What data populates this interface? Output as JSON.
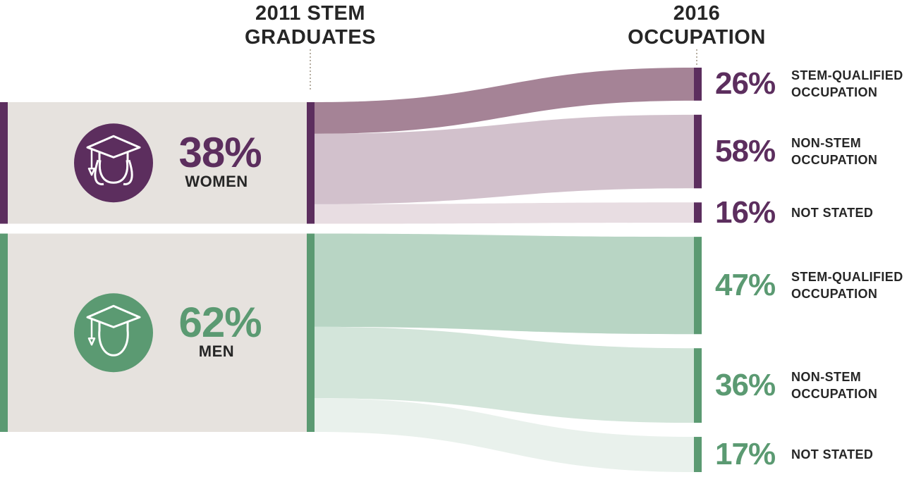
{
  "headers": {
    "left_line1": "2011 STEM",
    "left_line2": "GRADUATES",
    "right_line1": "2016",
    "right_line2": "OCCUPATION"
  },
  "colors": {
    "women_dark": "#5c2e5e",
    "women_flow_stem": "#a58396",
    "women_flow_nonstem": "#d2c1cc",
    "women_flow_notstated": "#e8dde2",
    "men_dark": "#5b9a72",
    "men_flow_stem": "#b8d5c4",
    "men_flow_nonstem": "#d3e5da",
    "men_flow_notstated": "#e9f1ec",
    "box_bg": "#e6e2de",
    "text": "#262626"
  },
  "chart_data": {
    "type": "sankey",
    "source_label": "2011 STEM GRADUATES",
    "target_label": "2016 OCCUPATION",
    "groups": [
      {
        "key": "women",
        "name": "WOMEN",
        "share": "38%",
        "share_value": 38,
        "icon": "female-graduate-icon",
        "outcomes": [
          {
            "pct": "26%",
            "value": 26,
            "label_line1": "STEM-QUALIFIED",
            "label_line2": "OCCUPATION"
          },
          {
            "pct": "58%",
            "value": 58,
            "label_line1": "NON-STEM",
            "label_line2": "OCCUPATION"
          },
          {
            "pct": "16%",
            "value": 16,
            "label_line1": "NOT STATED",
            "label_line2": ""
          }
        ]
      },
      {
        "key": "men",
        "name": "MEN",
        "share": "62%",
        "share_value": 62,
        "icon": "male-graduate-icon",
        "outcomes": [
          {
            "pct": "47%",
            "value": 47,
            "label_line1": "STEM-QUALIFIED",
            "label_line2": "OCCUPATION"
          },
          {
            "pct": "36%",
            "value": 36,
            "label_line1": "NON-STEM",
            "label_line2": "OCCUPATION"
          },
          {
            "pct": "17%",
            "value": 17,
            "label_line1": "NOT STATED",
            "label_line2": ""
          }
        ]
      }
    ]
  }
}
